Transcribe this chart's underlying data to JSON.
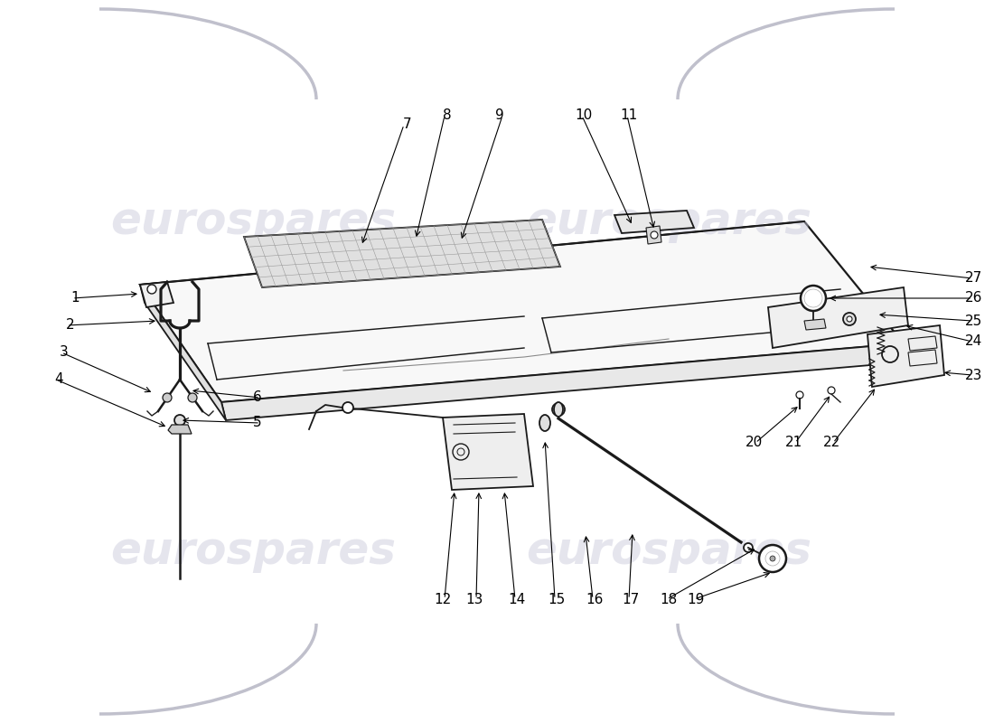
{
  "background_color": "#ffffff",
  "watermark_text": "eurospares",
  "watermark_color_rgba": [
    0.78,
    0.78,
    0.85,
    0.45
  ],
  "line_color": "#1a1a1a",
  "light_gray": "#c8c8d0",
  "figsize": [
    11.0,
    8.0
  ],
  "dpi": 100,
  "label_fontsize": 11
}
